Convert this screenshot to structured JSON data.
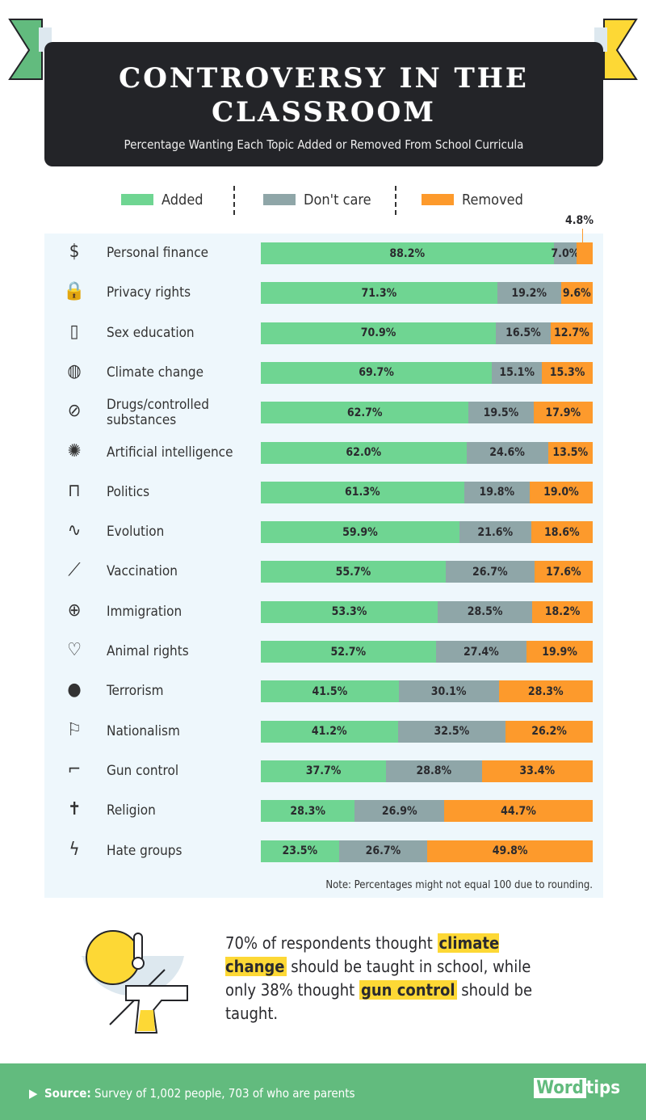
{
  "header": {
    "title": "CONTROVERSY IN THE CLASSROOM",
    "subtitle": "Percentage Wanting Each Topic Added or Removed From School Curricula"
  },
  "colors": {
    "added": "#6fd592",
    "dont_care": "#8fa6a8",
    "removed": "#fd9a2c",
    "banner": "#232428",
    "footer": "#62bb7e",
    "highlight": "#fdd835",
    "ribbon_left": "#62bb7e",
    "ribbon_right": "#fdd835"
  },
  "chart_data": {
    "type": "bar",
    "orientation": "horizontal",
    "stacked": true,
    "legend": [
      "Added",
      "Don't care",
      "Removed"
    ],
    "categories": [
      "Personal finance",
      "Privacy rights",
      "Sex education",
      "Climate change",
      "Drugs/controlled substances",
      "Artificial intelligence",
      "Politics",
      "Evolution",
      "Vaccination",
      "Immigration",
      "Animal rights",
      "Terrorism",
      "Nationalism",
      "Gun control",
      "Religion",
      "Hate groups"
    ],
    "icons": [
      "head-dollar-icon",
      "lock-icon",
      "condom-icon",
      "hot-earth-icon",
      "pill-icon",
      "brain-head-icon",
      "podium-icon",
      "dna-icon",
      "syringe-icon",
      "passport-icon",
      "paw-heart-icon",
      "bomb-icon",
      "flag-icon",
      "gun-icon",
      "cross-icon",
      "lightning-icon"
    ],
    "series": [
      {
        "name": "Added",
        "values": [
          88.2,
          71.3,
          70.9,
          69.7,
          62.7,
          62.0,
          61.3,
          59.9,
          55.7,
          53.3,
          52.7,
          41.5,
          41.2,
          37.7,
          28.3,
          23.5
        ]
      },
      {
        "name": "Don't care",
        "values": [
          7.0,
          19.2,
          16.5,
          15.1,
          19.5,
          24.6,
          19.8,
          21.6,
          26.7,
          28.5,
          27.4,
          30.1,
          32.5,
          28.8,
          26.9,
          26.7
        ]
      },
      {
        "name": "Removed",
        "values": [
          4.8,
          9.6,
          12.7,
          15.3,
          17.9,
          13.5,
          19.0,
          18.6,
          17.6,
          18.2,
          19.9,
          28.3,
          26.2,
          33.4,
          44.7,
          49.8
        ]
      }
    ],
    "note": "Note: Percentages might not equal 100 due to rounding."
  },
  "callout": {
    "t1": "70% of respondents thought ",
    "h1": "climate change",
    "t2": " should be taught in school, while only 38% thought ",
    "h2": "gun control",
    "t3": " should be taught."
  },
  "footer": {
    "source_label": "Source:",
    "source_text": " Survey of 1,002 people, 703 of who are parents",
    "logo_word": "Word",
    "logo_tips": "tips"
  }
}
